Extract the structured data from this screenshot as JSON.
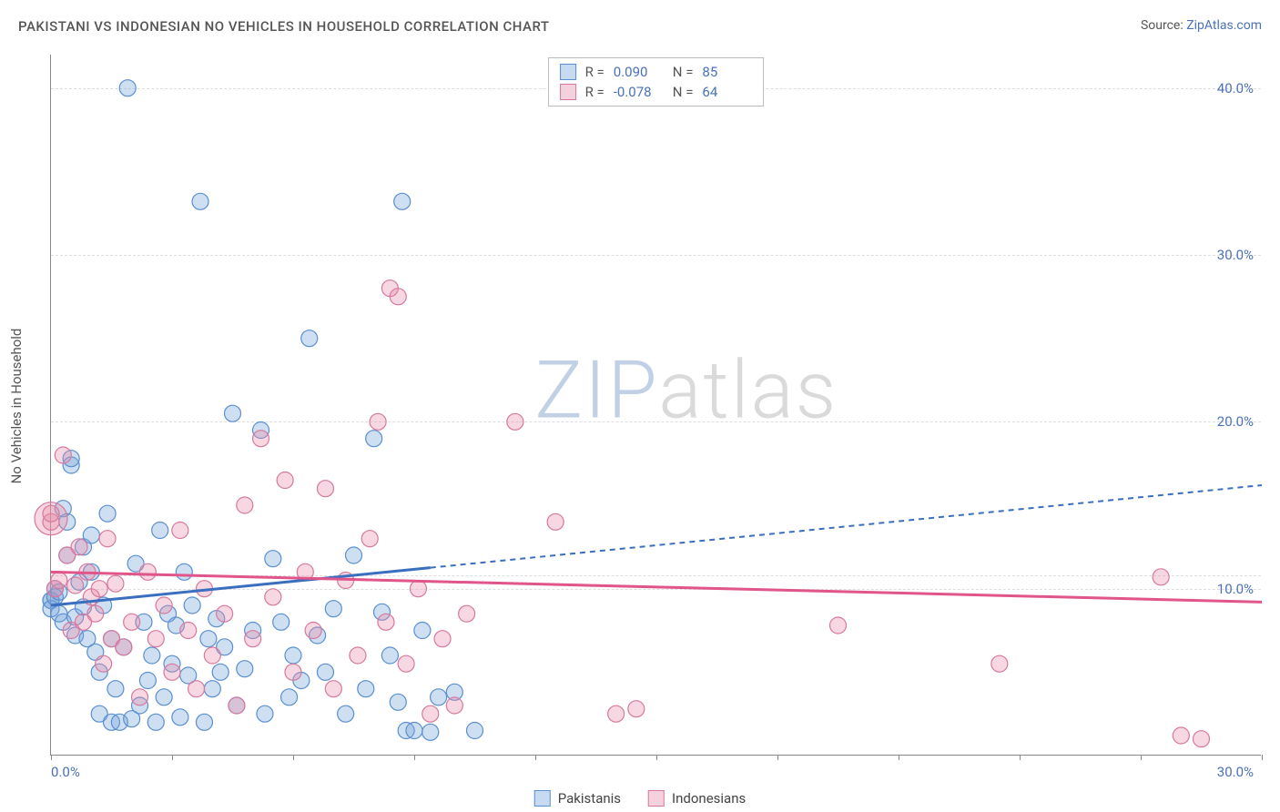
{
  "title": "PAKISTANI VS INDONESIAN NO VEHICLES IN HOUSEHOLD CORRELATION CHART",
  "source_prefix": "Source: ",
  "source_link": "ZipAtlas.com",
  "y_axis_label": "No Vehicles in Household",
  "watermark_a": "ZIP",
  "watermark_b": "atlas",
  "chart": {
    "type": "scatter",
    "xlim": [
      0,
      30
    ],
    "ylim": [
      0,
      42
    ],
    "x_ticks": [
      0,
      3,
      6,
      9,
      12,
      15,
      18,
      21,
      24,
      27,
      30
    ],
    "x_tick_labels_shown": {
      "0": "0.0%",
      "30": "30.0%"
    },
    "y_grid": [
      10,
      20,
      30,
      40
    ],
    "y_tick_labels": {
      "10": "10.0%",
      "20": "20.0%",
      "30": "30.0%",
      "40": "40.0%"
    },
    "background_color": "#ffffff",
    "grid_color": "#dddddd",
    "axis_color": "#888888",
    "label_color": "#4a72b8",
    "title_color": "#555555",
    "title_fontsize": 15,
    "label_fontsize": 15
  },
  "series": [
    {
      "key": "pakistanis",
      "label": "Pakistanis",
      "color_fill": "rgba(117,163,219,0.35)",
      "color_stroke": "#5a8fd0",
      "marker_radius": 9,
      "R": "0.090",
      "N": "85",
      "trend": {
        "x1": 0,
        "y1": 9.0,
        "x2": 30,
        "y2": 16.2,
        "solid_until_x": 9.4,
        "color": "#3a6fc0",
        "width": 3,
        "dash": "6,5"
      },
      "points": [
        [
          0.0,
          9.3
        ],
        [
          0.0,
          9.3
        ],
        [
          0.0,
          8.8
        ],
        [
          0.1,
          10.0
        ],
        [
          0.1,
          9.5
        ],
        [
          0.2,
          8.5
        ],
        [
          0.2,
          9.8
        ],
        [
          0.3,
          8.0
        ],
        [
          0.3,
          14.8
        ],
        [
          0.4,
          14.0
        ],
        [
          0.4,
          12.0
        ],
        [
          0.5,
          17.4
        ],
        [
          0.5,
          17.8
        ],
        [
          0.6,
          8.3
        ],
        [
          0.6,
          7.2
        ],
        [
          0.7,
          10.4
        ],
        [
          0.8,
          8.9
        ],
        [
          0.8,
          12.5
        ],
        [
          0.9,
          7.0
        ],
        [
          1.0,
          11.0
        ],
        [
          1.0,
          13.2
        ],
        [
          1.1,
          6.2
        ],
        [
          1.2,
          2.5
        ],
        [
          1.2,
          5.0
        ],
        [
          1.3,
          9.0
        ],
        [
          1.4,
          14.5
        ],
        [
          1.5,
          2.0
        ],
        [
          1.5,
          7.0
        ],
        [
          1.6,
          4.0
        ],
        [
          1.7,
          2.0
        ],
        [
          1.8,
          6.5
        ],
        [
          1.9,
          40.0
        ],
        [
          2.0,
          2.2
        ],
        [
          2.1,
          11.5
        ],
        [
          2.2,
          3.0
        ],
        [
          2.3,
          8.0
        ],
        [
          2.4,
          4.5
        ],
        [
          2.5,
          6.0
        ],
        [
          2.6,
          2.0
        ],
        [
          2.7,
          13.5
        ],
        [
          2.8,
          3.5
        ],
        [
          2.9,
          8.5
        ],
        [
          3.0,
          5.5
        ],
        [
          3.1,
          7.8
        ],
        [
          3.2,
          2.3
        ],
        [
          3.3,
          11.0
        ],
        [
          3.4,
          4.8
        ],
        [
          3.5,
          9.0
        ],
        [
          3.7,
          33.2
        ],
        [
          3.8,
          2.0
        ],
        [
          3.9,
          7.0
        ],
        [
          4.0,
          4.0
        ],
        [
          4.1,
          8.2
        ],
        [
          4.2,
          5.0
        ],
        [
          4.3,
          6.5
        ],
        [
          4.5,
          20.5
        ],
        [
          4.6,
          3.0
        ],
        [
          4.8,
          5.2
        ],
        [
          5.0,
          7.5
        ],
        [
          5.2,
          19.5
        ],
        [
          5.3,
          2.5
        ],
        [
          5.5,
          11.8
        ],
        [
          5.7,
          8.0
        ],
        [
          5.9,
          3.5
        ],
        [
          6.0,
          6.0
        ],
        [
          6.2,
          4.5
        ],
        [
          6.4,
          25.0
        ],
        [
          6.6,
          7.2
        ],
        [
          6.8,
          5.0
        ],
        [
          7.0,
          8.8
        ],
        [
          7.3,
          2.5
        ],
        [
          7.5,
          12.0
        ],
        [
          7.8,
          4.0
        ],
        [
          8.0,
          19.0
        ],
        [
          8.2,
          8.6
        ],
        [
          8.4,
          6.0
        ],
        [
          8.6,
          3.2
        ],
        [
          8.7,
          33.2
        ],
        [
          8.8,
          1.5
        ],
        [
          9.0,
          1.5
        ],
        [
          9.2,
          7.5
        ],
        [
          9.4,
          1.4
        ],
        [
          9.6,
          3.5
        ],
        [
          10.0,
          3.8
        ],
        [
          10.5,
          1.5
        ]
      ]
    },
    {
      "key": "indonesians",
      "label": "Indonesians",
      "color_fill": "rgba(231,140,170,0.35)",
      "color_stroke": "#d6799f",
      "marker_radius": 9,
      "R": "-0.078",
      "N": "64",
      "trend": {
        "x1": 0,
        "y1": 11.0,
        "x2": 30,
        "y2": 9.2,
        "solid_until_x": 30,
        "color": "#e0558a",
        "width": 3,
        "dash": ""
      },
      "points": [
        [
          0.0,
          14.0
        ],
        [
          0.0,
          14.5
        ],
        [
          0.1,
          10.0
        ],
        [
          0.2,
          10.5
        ],
        [
          0.3,
          18.0
        ],
        [
          0.4,
          12.0
        ],
        [
          0.5,
          7.5
        ],
        [
          0.6,
          10.2
        ],
        [
          0.7,
          12.5
        ],
        [
          0.8,
          8.0
        ],
        [
          0.9,
          11.0
        ],
        [
          1.0,
          9.5
        ],
        [
          1.1,
          8.5
        ],
        [
          1.2,
          10.0
        ],
        [
          1.3,
          5.5
        ],
        [
          1.4,
          13.0
        ],
        [
          1.5,
          7.0
        ],
        [
          1.6,
          10.3
        ],
        [
          1.8,
          6.5
        ],
        [
          2.0,
          8.0
        ],
        [
          2.2,
          3.5
        ],
        [
          2.4,
          11.0
        ],
        [
          2.6,
          7.0
        ],
        [
          2.8,
          9.0
        ],
        [
          3.0,
          5.0
        ],
        [
          3.2,
          13.5
        ],
        [
          3.4,
          7.5
        ],
        [
          3.6,
          4.0
        ],
        [
          3.8,
          10.0
        ],
        [
          4.0,
          6.0
        ],
        [
          4.3,
          8.5
        ],
        [
          4.6,
          3.0
        ],
        [
          4.8,
          15.0
        ],
        [
          5.0,
          7.0
        ],
        [
          5.2,
          19.0
        ],
        [
          5.5,
          9.5
        ],
        [
          5.8,
          16.5
        ],
        [
          6.0,
          5.0
        ],
        [
          6.3,
          11.0
        ],
        [
          6.5,
          7.5
        ],
        [
          6.8,
          16.0
        ],
        [
          7.0,
          4.0
        ],
        [
          7.3,
          10.5
        ],
        [
          7.6,
          6.0
        ],
        [
          7.9,
          13.0
        ],
        [
          8.1,
          20.0
        ],
        [
          8.3,
          8.0
        ],
        [
          8.4,
          28.0
        ],
        [
          8.6,
          27.5
        ],
        [
          8.8,
          5.5
        ],
        [
          9.1,
          10.0
        ],
        [
          9.4,
          2.5
        ],
        [
          9.7,
          7.0
        ],
        [
          10.0,
          3.0
        ],
        [
          10.3,
          8.5
        ],
        [
          11.5,
          20.0
        ],
        [
          12.5,
          14.0
        ],
        [
          14.0,
          2.5
        ],
        [
          14.5,
          2.8
        ],
        [
          19.5,
          7.8
        ],
        [
          23.5,
          5.5
        ],
        [
          27.5,
          10.7
        ],
        [
          28.0,
          1.2
        ],
        [
          28.5,
          1.0
        ]
      ],
      "large_points": [
        {
          "x": 0.0,
          "y": 14.2,
          "r": 18
        }
      ]
    }
  ],
  "stats_labels": {
    "R": "R =",
    "N": "N ="
  },
  "legend": [
    {
      "swatch": "blue",
      "label": "Pakistanis"
    },
    {
      "swatch": "pink",
      "label": "Indonesians"
    }
  ]
}
